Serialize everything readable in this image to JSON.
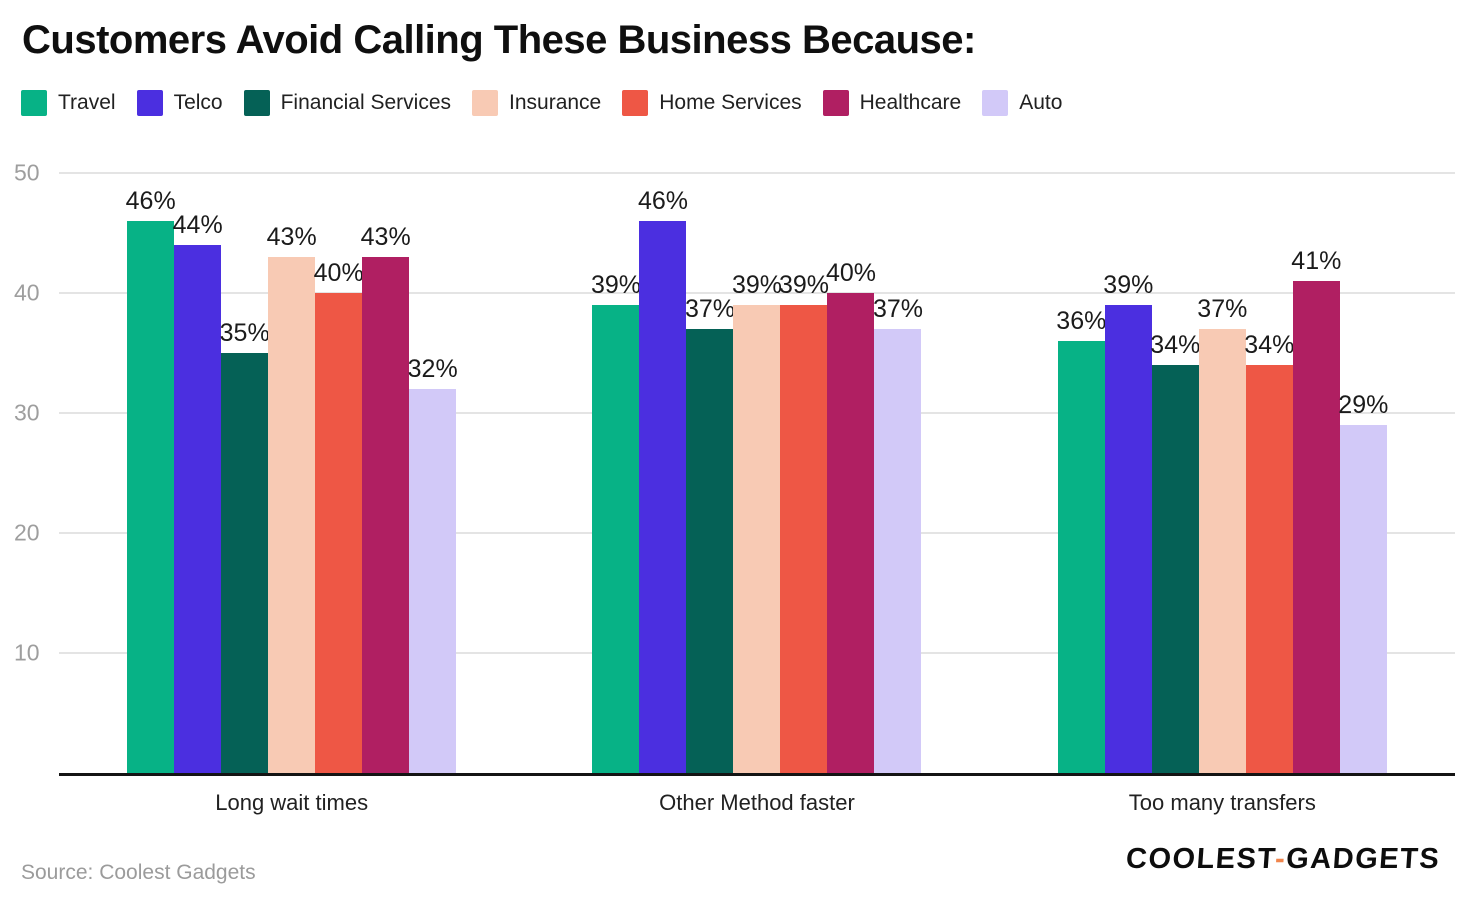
{
  "title": "Customers Avoid Calling These Business Because:",
  "source_note": "Source: Coolest Gadgets",
  "branding": {
    "logo_text_primary": "COOLEST",
    "logo_hyphen": "-",
    "logo_text_secondary": "GADGETS"
  },
  "colors": {
    "title": "#0f0f0f",
    "axis_label": "#9e9e9e",
    "gridline": "#e4e4e4",
    "baseline": "#141414",
    "value_label": "#1b1b1b",
    "category_label": "#212121",
    "source": "#9b9b9b",
    "logo_hyphen": "#f0854c"
  },
  "chart_data": {
    "type": "bar",
    "title": "Customers Avoid Calling These Business Because:",
    "categories": [
      "Long wait times",
      "Other Method faster",
      "Too many transfers"
    ],
    "series": [
      {
        "name": "Travel",
        "color": "#07b286",
        "values": [
          46,
          39,
          36
        ]
      },
      {
        "name": "Telco",
        "color": "#4b2fe0",
        "values": [
          44,
          46,
          39
        ]
      },
      {
        "name": "Financial Services",
        "color": "#056156",
        "values": [
          35,
          37,
          34
        ]
      },
      {
        "name": "Insurance",
        "color": "#f8cab4",
        "values": [
          43,
          39,
          37
        ]
      },
      {
        "name": "Home Services",
        "color": "#ee5745",
        "values": [
          40,
          39,
          34
        ]
      },
      {
        "name": "Healthcare",
        "color": "#b01f62",
        "values": [
          43,
          40,
          41
        ]
      },
      {
        "name": "Auto",
        "color": "#d2c9f8",
        "values": [
          32,
          37,
          29
        ]
      }
    ],
    "value_suffix": "%",
    "xlabel": "",
    "ylabel": "",
    "ylim": [
      0,
      50
    ],
    "yticks": [
      10,
      20,
      30,
      40,
      50
    ],
    "grid": true,
    "legend_position": "top"
  }
}
